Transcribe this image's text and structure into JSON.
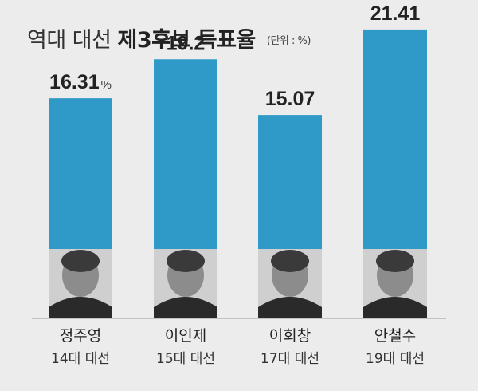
{
  "title": {
    "main": "역대 대선",
    "bold": "제3후보 득표율",
    "unit": "(단위 : %)"
  },
  "colors": {
    "bar": "#2f9ac8",
    "background": "#ececec"
  },
  "chart_data": {
    "type": "bar",
    "title": "역대 대선 제3후보 득표율",
    "unit_label": "(단위 : %)",
    "categories": [
      "정주영",
      "이인제",
      "이회창",
      "안철수"
    ],
    "subcategories": [
      "14대 대선",
      "15대 대선",
      "17대 대선",
      "19대 대선"
    ],
    "values": [
      16.31,
      19.2,
      15.07,
      21.41
    ],
    "value_labels": [
      "16.31",
      "19.2",
      "15.07",
      "21.41"
    ],
    "value_unit_on_first": "%",
    "ylim": [
      0,
      23
    ],
    "grid": false,
    "legend": "none"
  }
}
